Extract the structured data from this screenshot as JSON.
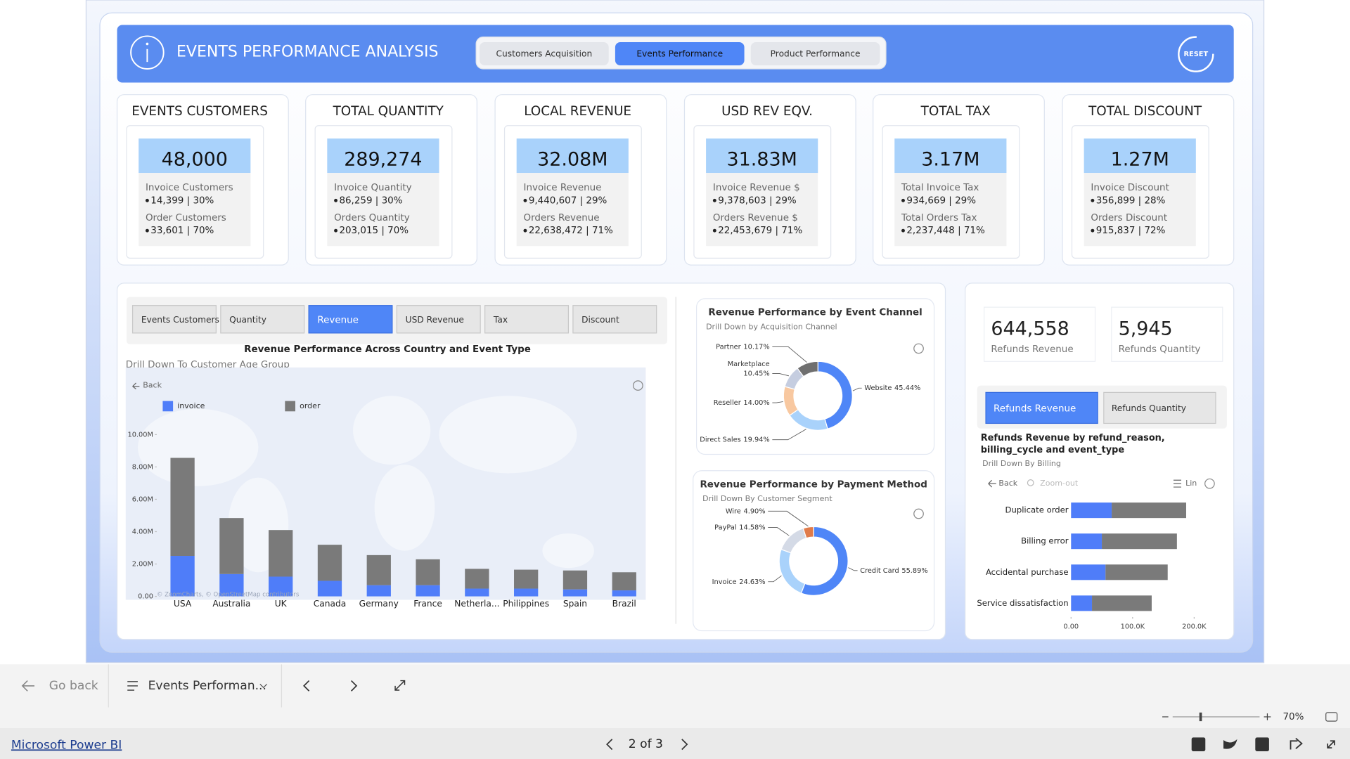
{
  "header": {
    "title": "EVENTS PERFORMANCE ANALYSIS",
    "tabs": [
      "Customers Acquisition",
      "Events Performance",
      "Product Performance"
    ],
    "active_tab": 1,
    "reset": "RESET"
  },
  "kpis": [
    {
      "title": "EVENTS CUSTOMERS",
      "value": "48,000",
      "rows": [
        {
          "label": "Invoice Customers",
          "value": "14,399 | 30%"
        },
        {
          "label": "Order Customers",
          "value": "33,601 | 70%"
        }
      ]
    },
    {
      "title": "TOTAL QUANTITY",
      "value": "289,274",
      "rows": [
        {
          "label": "Invoice Quantity",
          "value": "86,259 | 30%"
        },
        {
          "label": "Orders Quantity",
          "value": "203,015 | 70%"
        }
      ]
    },
    {
      "title": "LOCAL REVENUE",
      "value": "32.08M",
      "rows": [
        {
          "label": "Invoice Revenue",
          "value": "9,440,607 | 29%"
        },
        {
          "label": "Orders Revenue",
          "value": "22,638,472 | 71%"
        }
      ]
    },
    {
      "title": "USD REV EQV.",
      "value": "31.83M",
      "rows": [
        {
          "label": "Invoice Revenue $",
          "value": "9,378,603 | 29%"
        },
        {
          "label": "Orders Revenue $",
          "value": "22,453,679 | 71%"
        }
      ]
    },
    {
      "title": "TOTAL TAX",
      "value": "3.17M",
      "rows": [
        {
          "label": "Total Invoice Tax",
          "value": "934,669 | 29%"
        },
        {
          "label": "Total Orders Tax",
          "value": "2,237,448 | 71%"
        }
      ]
    },
    {
      "title": "TOTAL DISCOUNT",
      "value": "1.27M",
      "rows": [
        {
          "label": "Invoice Discount",
          "value": "356,899 | 28%"
        },
        {
          "label": "Orders Discount",
          "value": "915,837 | 72%"
        }
      ]
    }
  ],
  "country_panel": {
    "buttons": [
      "Events Customers",
      "Quantity",
      "Revenue",
      "USD Revenue",
      "Tax",
      "Discount"
    ],
    "active_button": 2
  },
  "country_chart": {
    "type": "bar",
    "stacked": true,
    "title": "Revenue Performance Across Country and Event Type",
    "subtitle": "Drill Down To Customer Age Group",
    "back": "Back",
    "attribution": "© ZoomCharts, © OpenStreetMap contributors",
    "categories": [
      "USA",
      "Australia",
      "UK",
      "Canada",
      "Germany",
      "France",
      "Netherla...",
      "Philippines",
      "Spain",
      "Brazil"
    ],
    "series": [
      {
        "name": "invoice",
        "color": "#4f7df9",
        "values": [
          2500000,
          1380000,
          1220000,
          960000,
          690000,
          690000,
          480000,
          480000,
          430000,
          370000
        ]
      },
      {
        "name": "order",
        "color": "#7a7a7a",
        "values": [
          6060000,
          3460000,
          2880000,
          2230000,
          1860000,
          1600000,
          1220000,
          1170000,
          1170000,
          1120000
        ]
      }
    ],
    "ylim": [
      0,
      13000000
    ],
    "yticks": [
      {
        "value": 0,
        "label": "0.00"
      },
      {
        "value": 2000000,
        "label": "2.00M"
      },
      {
        "value": 4000000,
        "label": "4.00M"
      },
      {
        "value": 6000000,
        "label": "6.00M"
      },
      {
        "value": 8000000,
        "label": "8.00M"
      },
      {
        "value": 10000000,
        "label": "10.00M"
      }
    ]
  },
  "channel_chart": {
    "type": "pie",
    "donut": true,
    "title": "Revenue Performance by Event Channel",
    "subtitle": "Drill Down by Acquisition Channel",
    "categories": [
      "Website",
      "Direct Sales",
      "Reseller",
      "Marketplace",
      "Partner"
    ],
    "values": [
      45.44,
      19.94,
      14.0,
      10.45,
      10.17
    ],
    "value_labels": [
      "45.44%",
      "19.94%",
      "14.00%",
      "10.45%",
      "10.17%"
    ],
    "colors": [
      "#4f86f7",
      "#a9d2fb",
      "#f8c8a0",
      "#c5cde0",
      "#6f6f6f"
    ]
  },
  "payment_chart": {
    "type": "pie",
    "donut": true,
    "title": "Revenue Performance by Payment Method",
    "subtitle": "Drill Down By Customer Segment",
    "categories": [
      "Credit Card",
      "Invoice",
      "PayPal",
      "Wire"
    ],
    "values": [
      55.89,
      24.63,
      14.58,
      4.9
    ],
    "value_labels": [
      "55.89%",
      "24.63%",
      "14.58%",
      "4.90%"
    ],
    "colors": [
      "#4f86f7",
      "#a9d2fb",
      "#d4dae6",
      "#e07b4a"
    ]
  },
  "refunds": {
    "kpis": [
      {
        "value": "644,558",
        "label": "Refunds Revenue"
      },
      {
        "value": "5,945",
        "label": "Refunds Quantity"
      }
    ],
    "buttons": [
      "Refunds Revenue",
      "Refunds Quantity"
    ],
    "active_button": 0
  },
  "refund_chart": {
    "type": "bar",
    "orientation": "horizontal",
    "stacked": true,
    "title": "Refunds Revenue by refund_reason, billing_cycle and event_type",
    "subtitle": "Drill Down By Billing",
    "tools": [
      "Back",
      "Zoom-out",
      "Lin"
    ],
    "categories": [
      "Duplicate order",
      "Billing error",
      "Accidental purchase",
      "Service dissatisfaction"
    ],
    "series": [
      {
        "color": "#4f7df9",
        "values": [
          66000,
          50000,
          56000,
          34000
        ]
      },
      {
        "color": "#7a7a7a",
        "values": [
          121000,
          122000,
          101000,
          97000
        ]
      }
    ],
    "xlim": [
      0,
      220000
    ],
    "xticks": [
      {
        "value": 0,
        "label": "0.00"
      },
      {
        "value": 100000,
        "label": "100.0K"
      },
      {
        "value": 200000,
        "label": "200.0K"
      }
    ]
  },
  "footer": {
    "back": "Go back",
    "page_menu": "Events Performan...",
    "zoom": "70%",
    "brand": "Microsoft Power BI",
    "pager": "2 of 3"
  }
}
